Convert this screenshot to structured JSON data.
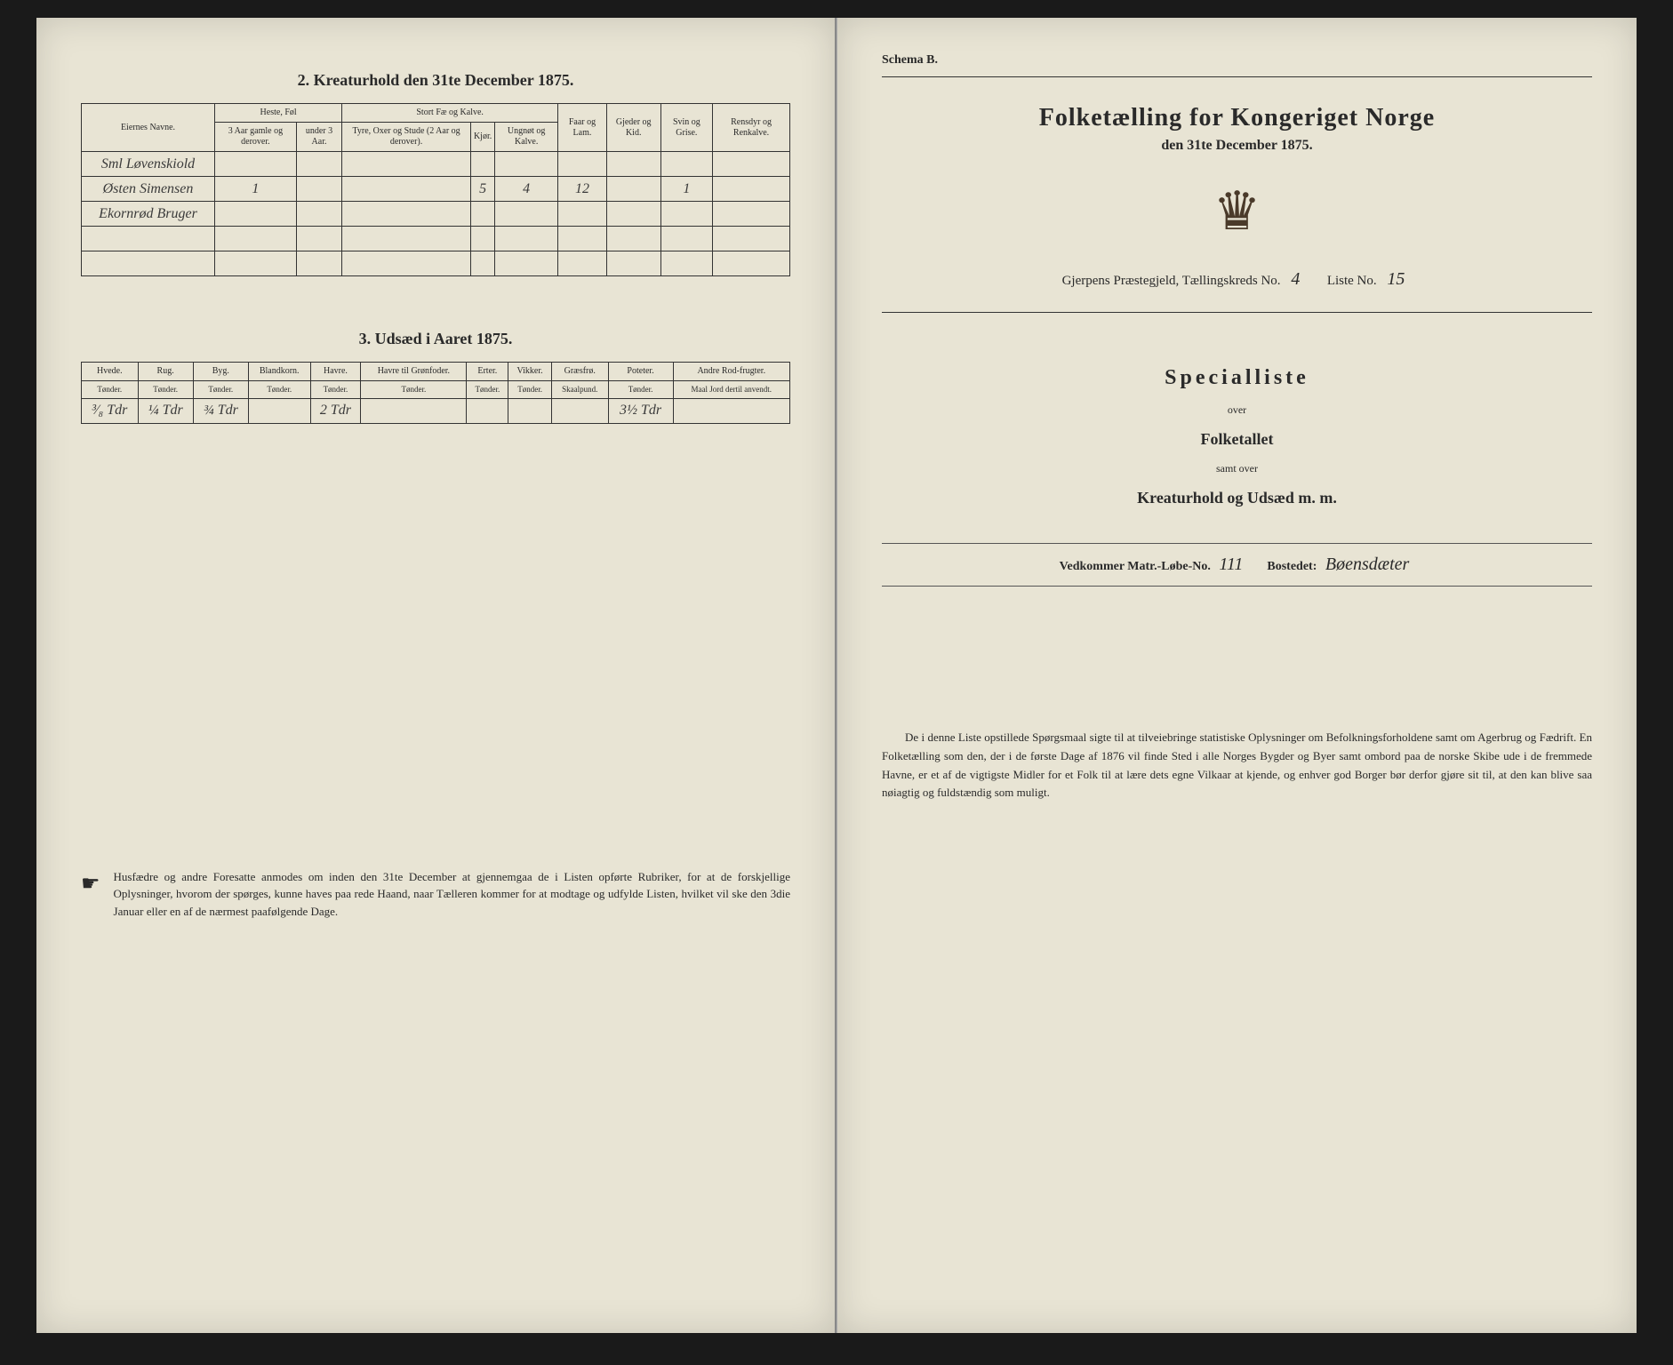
{
  "left": {
    "section2": {
      "title": "2. Kreaturhold den 31te December 1875.",
      "headers": {
        "owner": "Eiernes Navne.",
        "horses": "Heste, Føl",
        "horses_sub": [
          "3 Aar gamle og derover.",
          "under 3 Aar."
        ],
        "cattle": "Stort Fæ og Kalve.",
        "cattle_sub": [
          "Tyre, Oxer og Stude (2 Aar og derover).",
          "Kjør.",
          "Ungnøt og Kalve."
        ],
        "sheep": "Faar og Lam.",
        "goats": "Gjeder og Kid.",
        "pigs": "Svin og Grise.",
        "reindeer": "Rensdyr og Renkalve."
      },
      "rows": [
        {
          "name": "Sml Løvenskiold",
          "vals": [
            "",
            "",
            "",
            "",
            "",
            "",
            "",
            "",
            ""
          ]
        },
        {
          "name": "Østen Simensen",
          "vals": [
            "1",
            "",
            "",
            "5",
            "4",
            "12",
            "",
            "1",
            ""
          ]
        },
        {
          "name": "Ekornrød Bruger",
          "vals": [
            "",
            "",
            "",
            "",
            "",
            "",
            "",
            "",
            ""
          ]
        }
      ]
    },
    "section3": {
      "title": "3. Udsæd i Aaret 1875.",
      "headers": [
        "Hvede.",
        "Rug.",
        "Byg.",
        "Blandkorn.",
        "Havre.",
        "Havre til Grønfoder.",
        "Erter.",
        "Vikker.",
        "Græsfrø.",
        "Poteter.",
        "Andre Rod-frugter."
      ],
      "units": [
        "Tønder.",
        "Tønder.",
        "Tønder.",
        "Tønder.",
        "Tønder.",
        "Tønder.",
        "Tønder.",
        "Tønder.",
        "Skaalpund.",
        "Tønder.",
        "Maal Jord dertil anvendt."
      ],
      "row": [
        "³⁄₈ Tdr",
        "¼ Tdr",
        "¾ Tdr",
        "",
        "2 Tdr",
        "",
        "",
        "",
        "",
        "3½ Tdr",
        ""
      ]
    },
    "notice": "Husfædre og andre Foresatte anmodes om inden den 31te December at gjennemgaa de i Listen opførte Rubriker, for at de forskjellige Oplysninger, hvorom der spørges, kunne haves paa rede Haand, naar Tælleren kommer for at modtage og udfylde Listen, hvilket vil ske den 3die Januar eller en af de nærmest paafølgende Dage."
  },
  "right": {
    "schema": "Schema B.",
    "title": "Folketælling for Kongeriget Norge",
    "subtitle": "den 31te December 1875.",
    "parish_label": "Gjerpens Præstegjeld, Tællingskreds No.",
    "parish_no": "4",
    "list_label": "Liste No.",
    "list_no": "15",
    "special": "Specialliste",
    "over": "over",
    "folketallet": "Folketallet",
    "samt": "samt over",
    "kreatur": "Kreaturhold og Udsæd m. m.",
    "matr_label": "Vedkommer Matr.-Løbe-No.",
    "matr_no": "111",
    "bosted_label": "Bostedet:",
    "bosted": "Bøensdæter",
    "body": "De i denne Liste opstillede Spørgsmaal sigte til at tilveiebringe statistiske Oplysninger om Befolkningsforholdene samt om Agerbrug og Fædrift. En Folketælling som den, der i de første Dage af 1876 vil finde Sted i alle Norges Bygder og Byer samt ombord paa de norske Skibe ude i de fremmede Havne, er et af de vigtigste Midler for et Folk til at lære dets egne Vilkaar at kjende, og enhver god Borger bør derfor gjøre sit til, at den kan blive saa nøiagtig og fuldstændig som muligt."
  }
}
